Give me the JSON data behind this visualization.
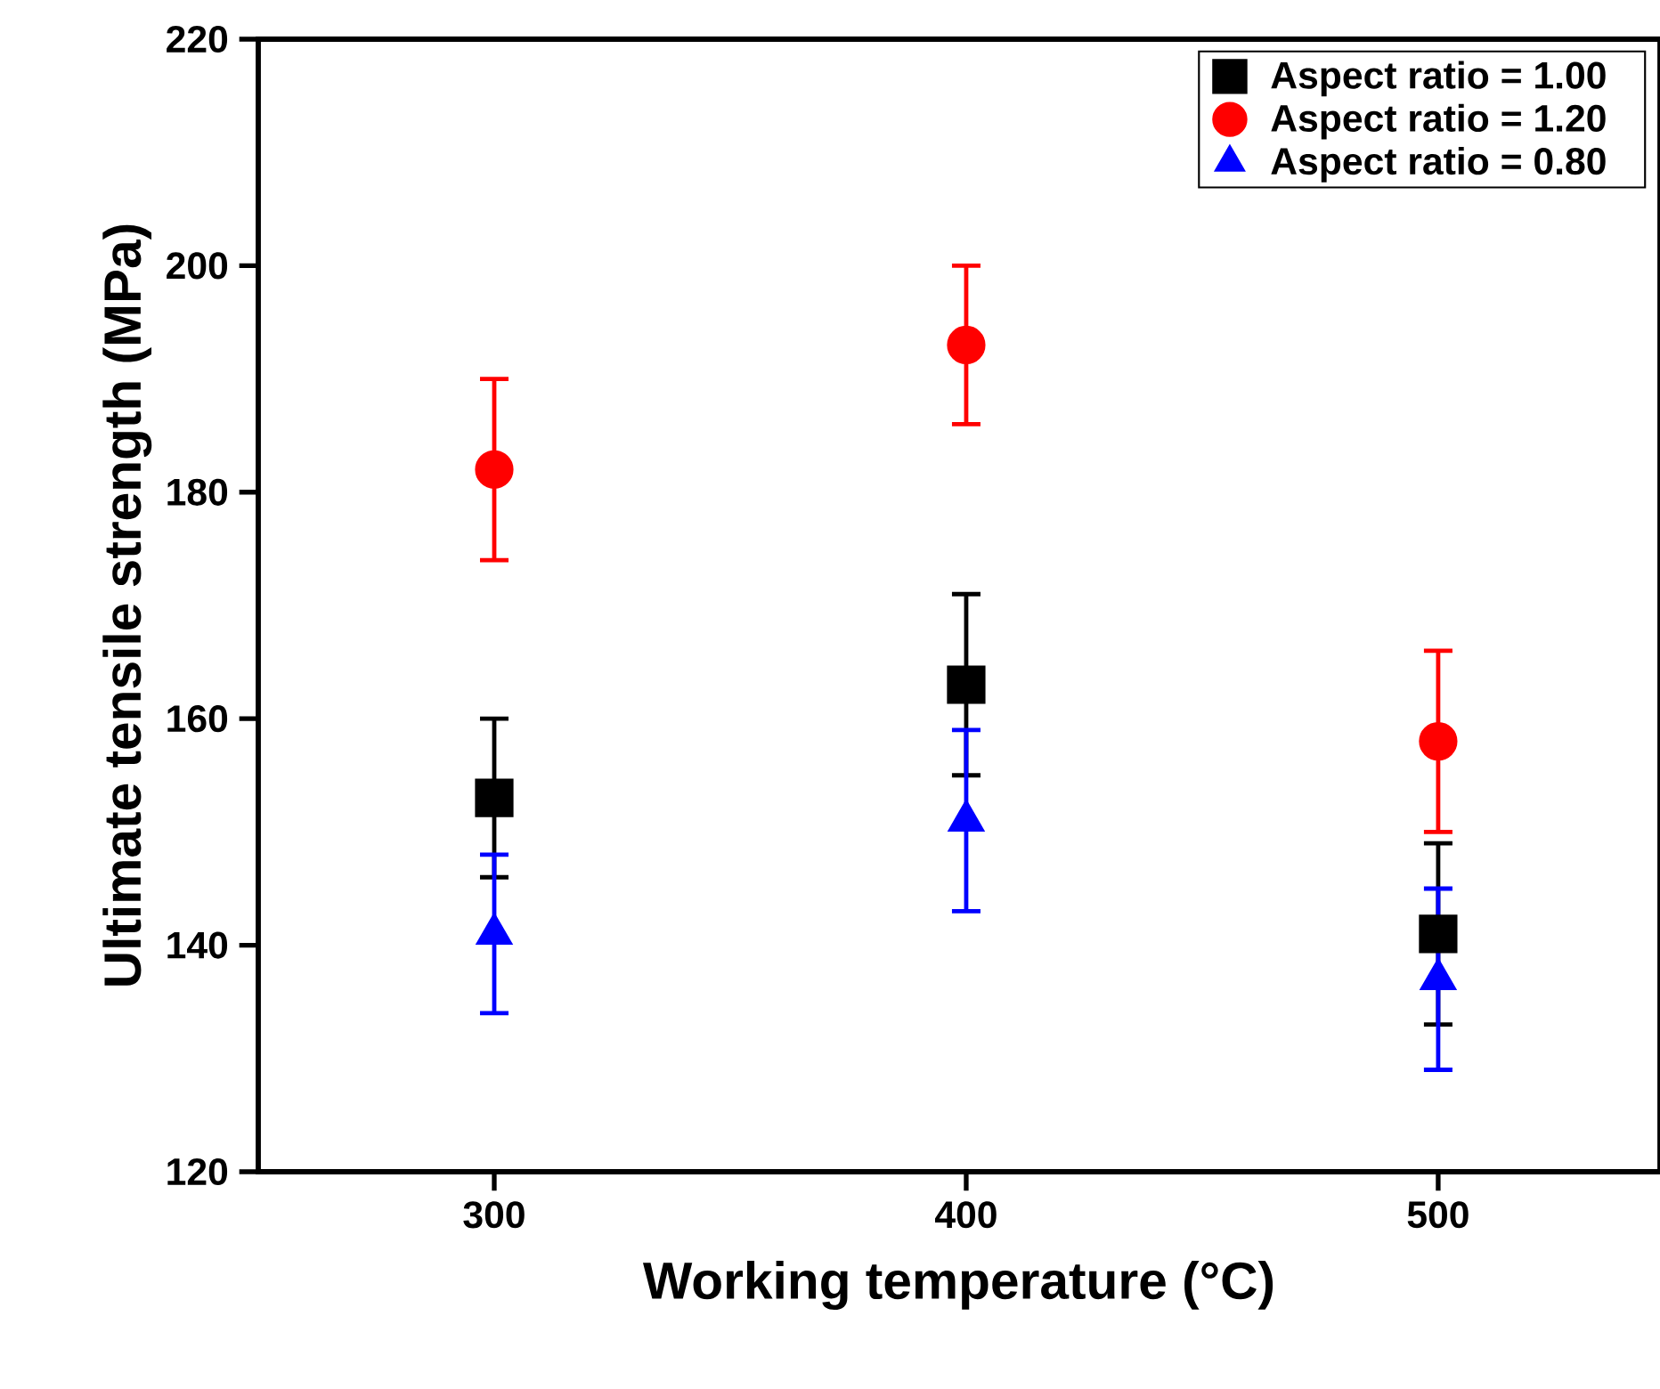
{
  "chart_data": {
    "type": "scatter",
    "xlabel": "Working temperature (°C)",
    "ylabel": "Ultimate tensile strength (MPa)",
    "x": [
      300,
      400,
      500
    ],
    "xlim": [
      250,
      547
    ],
    "xticks": [
      300,
      400,
      500
    ],
    "ylim": [
      120,
      220
    ],
    "yticks": [
      120,
      140,
      160,
      180,
      200,
      220
    ],
    "legend": "top right",
    "grid": false,
    "series": [
      {
        "name": "Aspect ratio = 1.00",
        "color": "#000000",
        "marker": "square",
        "values": [
          153,
          163,
          141
        ],
        "errors": [
          7,
          8,
          8
        ]
      },
      {
        "name": "Aspect ratio = 1.20",
        "color": "#ff0000",
        "marker": "circle",
        "values": [
          182,
          193,
          158
        ],
        "errors": [
          8,
          7,
          8
        ]
      },
      {
        "name": "Aspect ratio = 0.80",
        "color": "#0000ff",
        "marker": "triangle",
        "values": [
          141,
          151,
          137
        ],
        "errors": [
          7,
          8,
          8
        ]
      }
    ]
  }
}
